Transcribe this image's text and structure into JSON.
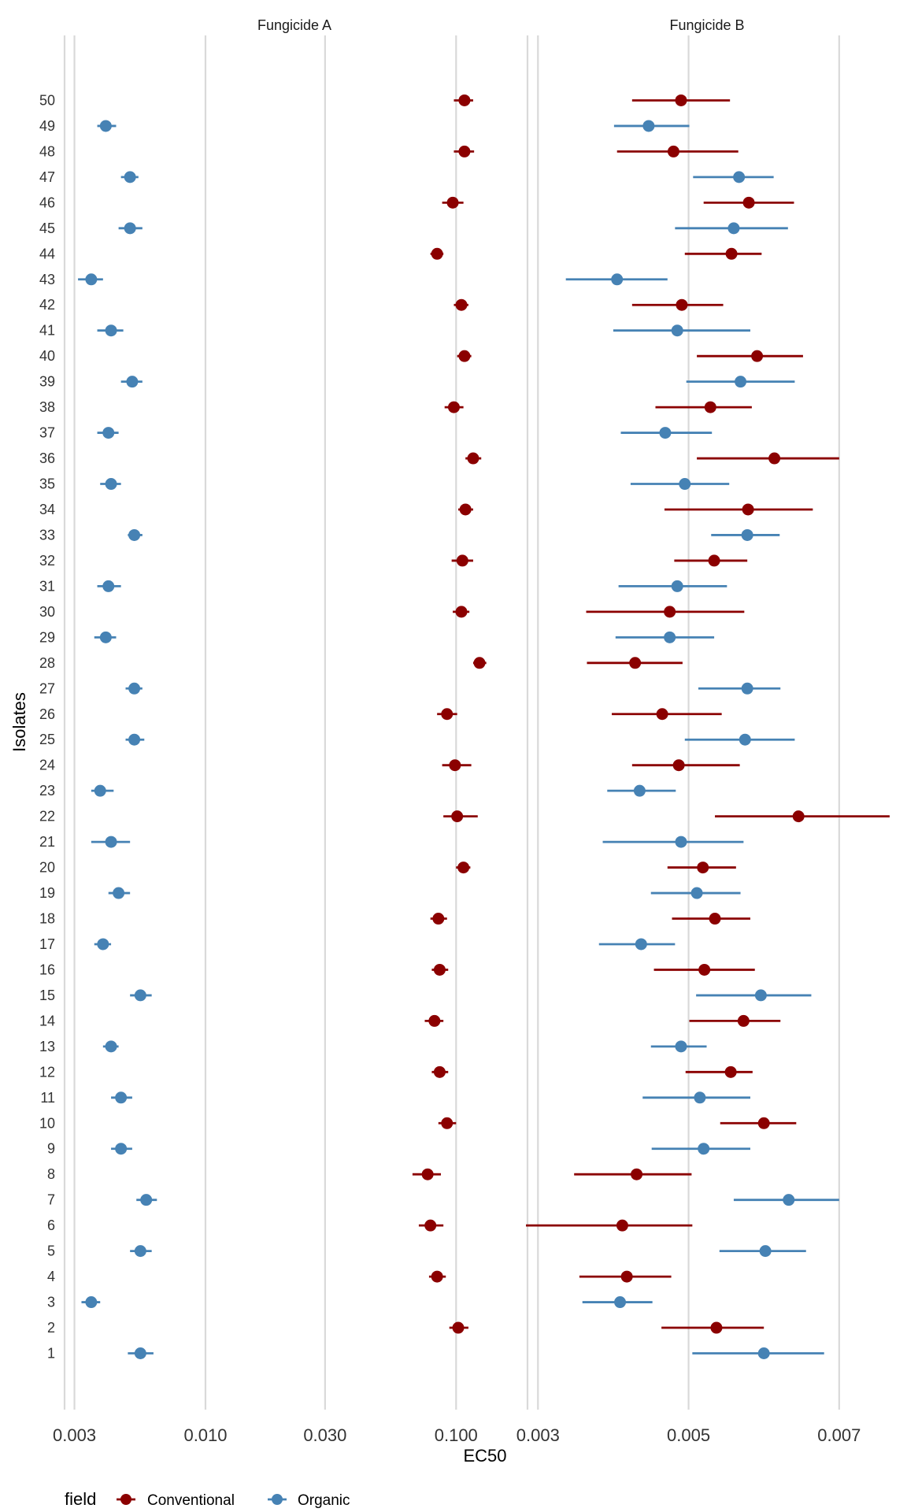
{
  "chart_data": {
    "type": "scatter",
    "style": "faceted point-range (dot with horizontal error bars)",
    "xlabel": "EC50",
    "ylabel": "Isolates",
    "legend": {
      "title": "field",
      "position": "bottom-left",
      "entries": [
        "Conventional",
        "Organic"
      ]
    },
    "colors": {
      "Conventional": "#8B0000",
      "Organic": "#4682B4",
      "grid": "#d9d9d9"
    },
    "grid": true,
    "isolates": [
      1,
      2,
      3,
      4,
      5,
      6,
      7,
      8,
      9,
      10,
      11,
      12,
      13,
      14,
      15,
      16,
      17,
      18,
      19,
      20,
      21,
      22,
      23,
      24,
      25,
      26,
      27,
      28,
      29,
      30,
      31,
      32,
      33,
      34,
      35,
      36,
      37,
      38,
      39,
      40,
      41,
      42,
      43,
      44,
      45,
      46,
      47,
      48,
      49,
      50
    ],
    "panels": [
      {
        "title": "Fungicide A",
        "scale": "log10",
        "xlim": [
          0.0027,
          0.19
        ],
        "xticks": [
          0.003,
          0.01,
          0.03,
          0.1
        ],
        "xtick_labels": [
          "0.003",
          "0.010",
          "0.030",
          "0.100"
        ],
        "series": [
          {
            "name": "Conventional",
            "points": [
              {
                "isolate": 2,
                "x": 0.102,
                "lo": 0.094,
                "hi": 0.112
              },
              {
                "isolate": 4,
                "x": 0.084,
                "lo": 0.078,
                "hi": 0.091
              },
              {
                "isolate": 6,
                "x": 0.079,
                "lo": 0.071,
                "hi": 0.089
              },
              {
                "isolate": 8,
                "x": 0.077,
                "lo": 0.067,
                "hi": 0.087
              },
              {
                "isolate": 10,
                "x": 0.092,
                "lo": 0.085,
                "hi": 0.1
              },
              {
                "isolate": 12,
                "x": 0.086,
                "lo": 0.08,
                "hi": 0.093
              },
              {
                "isolate": 14,
                "x": 0.082,
                "lo": 0.075,
                "hi": 0.089
              },
              {
                "isolate": 16,
                "x": 0.086,
                "lo": 0.08,
                "hi": 0.093
              },
              {
                "isolate": 18,
                "x": 0.085,
                "lo": 0.079,
                "hi": 0.092
              },
              {
                "isolate": 20,
                "x": 0.107,
                "lo": 0.1,
                "hi": 0.114
              },
              {
                "isolate": 22,
                "x": 0.101,
                "lo": 0.089,
                "hi": 0.122
              },
              {
                "isolate": 24,
                "x": 0.099,
                "lo": 0.088,
                "hi": 0.115
              },
              {
                "isolate": 26,
                "x": 0.092,
                "lo": 0.084,
                "hi": 0.101
              },
              {
                "isolate": 28,
                "x": 0.124,
                "lo": 0.117,
                "hi": 0.132
              },
              {
                "isolate": 30,
                "x": 0.105,
                "lo": 0.097,
                "hi": 0.113
              },
              {
                "isolate": 32,
                "x": 0.106,
                "lo": 0.096,
                "hi": 0.117
              },
              {
                "isolate": 34,
                "x": 0.109,
                "lo": 0.102,
                "hi": 0.117
              },
              {
                "isolate": 36,
                "x": 0.117,
                "lo": 0.109,
                "hi": 0.126
              },
              {
                "isolate": 38,
                "x": 0.098,
                "lo": 0.09,
                "hi": 0.107
              },
              {
                "isolate": 40,
                "x": 0.108,
                "lo": 0.101,
                "hi": 0.115
              },
              {
                "isolate": 42,
                "x": 0.105,
                "lo": 0.098,
                "hi": 0.112
              },
              {
                "isolate": 44,
                "x": 0.084,
                "lo": 0.079,
                "hi": 0.089
              },
              {
                "isolate": 46,
                "x": 0.097,
                "lo": 0.088,
                "hi": 0.107
              },
              {
                "isolate": 48,
                "x": 0.108,
                "lo": 0.098,
                "hi": 0.118
              },
              {
                "isolate": 50,
                "x": 0.108,
                "lo": 0.098,
                "hi": 0.117
              }
            ]
          },
          {
            "name": "Organic",
            "points": [
              {
                "isolate": 1,
                "x": 0.0055,
                "lo": 0.0049,
                "hi": 0.0062
              },
              {
                "isolate": 3,
                "x": 0.0035,
                "lo": 0.0032,
                "hi": 0.0038
              },
              {
                "isolate": 5,
                "x": 0.0055,
                "lo": 0.005,
                "hi": 0.0061
              },
              {
                "isolate": 7,
                "x": 0.0058,
                "lo": 0.0053,
                "hi": 0.0064
              },
              {
                "isolate": 9,
                "x": 0.0046,
                "lo": 0.0042,
                "hi": 0.0051
              },
              {
                "isolate": 11,
                "x": 0.0046,
                "lo": 0.0042,
                "hi": 0.0051
              },
              {
                "isolate": 13,
                "x": 0.0042,
                "lo": 0.0039,
                "hi": 0.0045
              },
              {
                "isolate": 15,
                "x": 0.0055,
                "lo": 0.005,
                "hi": 0.0061
              },
              {
                "isolate": 17,
                "x": 0.0039,
                "lo": 0.0036,
                "hi": 0.0042
              },
              {
                "isolate": 19,
                "x": 0.0045,
                "lo": 0.0041,
                "hi": 0.005
              },
              {
                "isolate": 21,
                "x": 0.0042,
                "lo": 0.0035,
                "hi": 0.005
              },
              {
                "isolate": 23,
                "x": 0.0038,
                "lo": 0.0035,
                "hi": 0.0043
              },
              {
                "isolate": 25,
                "x": 0.0052,
                "lo": 0.0048,
                "hi": 0.0057
              },
              {
                "isolate": 27,
                "x": 0.0052,
                "lo": 0.0048,
                "hi": 0.0056
              },
              {
                "isolate": 29,
                "x": 0.004,
                "lo": 0.0036,
                "hi": 0.0044
              },
              {
                "isolate": 31,
                "x": 0.0041,
                "lo": 0.0037,
                "hi": 0.0046
              },
              {
                "isolate": 33,
                "x": 0.0052,
                "lo": 0.0049,
                "hi": 0.0056
              },
              {
                "isolate": 35,
                "x": 0.0042,
                "lo": 0.0038,
                "hi": 0.0046
              },
              {
                "isolate": 37,
                "x": 0.0041,
                "lo": 0.0037,
                "hi": 0.0045
              },
              {
                "isolate": 39,
                "x": 0.0051,
                "lo": 0.0046,
                "hi": 0.0056
              },
              {
                "isolate": 41,
                "x": 0.0042,
                "lo": 0.0037,
                "hi": 0.0047
              },
              {
                "isolate": 43,
                "x": 0.0035,
                "lo": 0.0031,
                "hi": 0.0039
              },
              {
                "isolate": 45,
                "x": 0.005,
                "lo": 0.0045,
                "hi": 0.0056
              },
              {
                "isolate": 47,
                "x": 0.005,
                "lo": 0.0046,
                "hi": 0.0054
              },
              {
                "isolate": 49,
                "x": 0.004,
                "lo": 0.0037,
                "hi": 0.0044
              }
            ]
          }
        ]
      },
      {
        "title": "Fungicide B",
        "scale": "linear",
        "xlim": [
          0.00284,
          0.00765
        ],
        "xticks": [
          0.003,
          0.005,
          0.007
        ],
        "xtick_labels": [
          "0.003",
          "0.005",
          "0.007"
        ],
        "series": [
          {
            "name": "Conventional",
            "points": [
              {
                "isolate": 2,
                "x": 0.00537,
                "lo": 0.00464,
                "hi": 0.006
              },
              {
                "isolate": 4,
                "x": 0.00418,
                "lo": 0.00355,
                "hi": 0.00477
              },
              {
                "isolate": 6,
                "x": 0.00412,
                "lo": 0.00284,
                "hi": 0.00505
              },
              {
                "isolate": 8,
                "x": 0.00431,
                "lo": 0.00348,
                "hi": 0.00504
              },
              {
                "isolate": 10,
                "x": 0.006,
                "lo": 0.00542,
                "hi": 0.00643
              },
              {
                "isolate": 12,
                "x": 0.00556,
                "lo": 0.00496,
                "hi": 0.00585
              },
              {
                "isolate": 14,
                "x": 0.00573,
                "lo": 0.00501,
                "hi": 0.00622
              },
              {
                "isolate": 16,
                "x": 0.00521,
                "lo": 0.00454,
                "hi": 0.00588
              },
              {
                "isolate": 18,
                "x": 0.00535,
                "lo": 0.00478,
                "hi": 0.00582
              },
              {
                "isolate": 20,
                "x": 0.00519,
                "lo": 0.00472,
                "hi": 0.00563
              },
              {
                "isolate": 22,
                "x": 0.00646,
                "lo": 0.00535,
                "hi": 0.00767
              },
              {
                "isolate": 24,
                "x": 0.00487,
                "lo": 0.00425,
                "hi": 0.00568
              },
              {
                "isolate": 26,
                "x": 0.00465,
                "lo": 0.00398,
                "hi": 0.00544
              },
              {
                "isolate": 28,
                "x": 0.00429,
                "lo": 0.00365,
                "hi": 0.00492
              },
              {
                "isolate": 30,
                "x": 0.00475,
                "lo": 0.00364,
                "hi": 0.00574
              },
              {
                "isolate": 32,
                "x": 0.00534,
                "lo": 0.00481,
                "hi": 0.00578
              },
              {
                "isolate": 34,
                "x": 0.00579,
                "lo": 0.00468,
                "hi": 0.00665
              },
              {
                "isolate": 36,
                "x": 0.00614,
                "lo": 0.00511,
                "hi": 0.007
              },
              {
                "isolate": 38,
                "x": 0.00529,
                "lo": 0.00456,
                "hi": 0.00584
              },
              {
                "isolate": 40,
                "x": 0.00591,
                "lo": 0.00511,
                "hi": 0.00652
              },
              {
                "isolate": 42,
                "x": 0.00491,
                "lo": 0.00425,
                "hi": 0.00546
              },
              {
                "isolate": 44,
                "x": 0.00557,
                "lo": 0.00495,
                "hi": 0.00597
              },
              {
                "isolate": 46,
                "x": 0.0058,
                "lo": 0.0052,
                "hi": 0.0064
              },
              {
                "isolate": 48,
                "x": 0.0048,
                "lo": 0.00405,
                "hi": 0.00566
              },
              {
                "isolate": 50,
                "x": 0.0049,
                "lo": 0.00425,
                "hi": 0.00555
              }
            ]
          },
          {
            "name": "Organic",
            "points": [
              {
                "isolate": 1,
                "x": 0.006,
                "lo": 0.00505,
                "hi": 0.0068
              },
              {
                "isolate": 3,
                "x": 0.00409,
                "lo": 0.00359,
                "hi": 0.00452
              },
              {
                "isolate": 5,
                "x": 0.00602,
                "lo": 0.00541,
                "hi": 0.00656
              },
              {
                "isolate": 7,
                "x": 0.00633,
                "lo": 0.0056,
                "hi": 0.007
              },
              {
                "isolate": 9,
                "x": 0.0052,
                "lo": 0.00451,
                "hi": 0.00582
              },
              {
                "isolate": 11,
                "x": 0.00515,
                "lo": 0.00439,
                "hi": 0.00582
              },
              {
                "isolate": 13,
                "x": 0.0049,
                "lo": 0.0045,
                "hi": 0.00524
              },
              {
                "isolate": 15,
                "x": 0.00596,
                "lo": 0.0051,
                "hi": 0.00663
              },
              {
                "isolate": 17,
                "x": 0.00437,
                "lo": 0.00381,
                "hi": 0.00482
              },
              {
                "isolate": 19,
                "x": 0.00511,
                "lo": 0.0045,
                "hi": 0.00569
              },
              {
                "isolate": 21,
                "x": 0.0049,
                "lo": 0.00386,
                "hi": 0.00573
              },
              {
                "isolate": 23,
                "x": 0.00435,
                "lo": 0.00392,
                "hi": 0.00483
              },
              {
                "isolate": 25,
                "x": 0.00575,
                "lo": 0.00495,
                "hi": 0.00641
              },
              {
                "isolate": 27,
                "x": 0.00578,
                "lo": 0.00513,
                "hi": 0.00622
              },
              {
                "isolate": 29,
                "x": 0.00475,
                "lo": 0.00403,
                "hi": 0.00534
              },
              {
                "isolate": 31,
                "x": 0.00485,
                "lo": 0.00407,
                "hi": 0.00551
              },
              {
                "isolate": 33,
                "x": 0.00578,
                "lo": 0.0053,
                "hi": 0.00621
              },
              {
                "isolate": 35,
                "x": 0.00495,
                "lo": 0.00423,
                "hi": 0.00554
              },
              {
                "isolate": 37,
                "x": 0.00469,
                "lo": 0.0041,
                "hi": 0.00531
              },
              {
                "isolate": 39,
                "x": 0.00569,
                "lo": 0.00497,
                "hi": 0.00641
              },
              {
                "isolate": 41,
                "x": 0.00485,
                "lo": 0.004,
                "hi": 0.00582
              },
              {
                "isolate": 43,
                "x": 0.00405,
                "lo": 0.00337,
                "hi": 0.00472
              },
              {
                "isolate": 45,
                "x": 0.0056,
                "lo": 0.00482,
                "hi": 0.00632
              },
              {
                "isolate": 47,
                "x": 0.00567,
                "lo": 0.00506,
                "hi": 0.00613
              },
              {
                "isolate": 49,
                "x": 0.00447,
                "lo": 0.00401,
                "hi": 0.00501
              }
            ]
          }
        ]
      }
    ]
  }
}
